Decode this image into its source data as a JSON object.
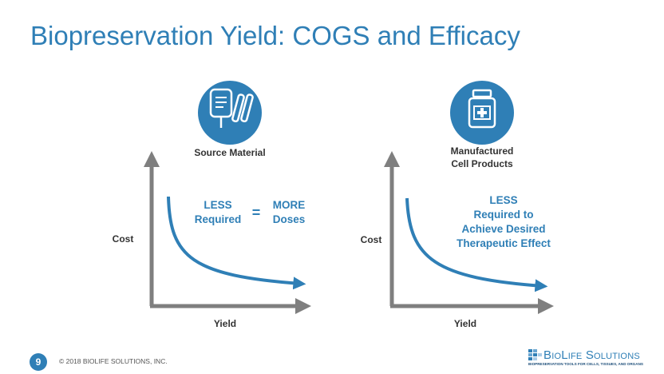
{
  "title": "Biopreservation Yield: COGS and Efficacy",
  "accent_color": "#2f7fb6",
  "panels": [
    {
      "icon": "iv-bag-test-tubes-icon",
      "icon_label": "Source Material",
      "y_axis_label": "Cost",
      "x_axis_label": "Yield",
      "callout_left": "LESS\nRequired",
      "callout_equals": "=",
      "callout_right": "MORE\nDoses"
    },
    {
      "icon": "medicine-bottle-icon",
      "icon_label": "Manufactured\nCell Products",
      "y_axis_label": "Cost",
      "x_axis_label": "Yield",
      "callout": "LESS\nRequired to\nAchieve Desired\nTherapeutic Effect"
    }
  ],
  "footer": {
    "page_number": "9",
    "copyright": "© 2018 BIOLIFE SOLUTIONS, INC.",
    "logo_name": "BioLife Solutions",
    "logo_tagline": "BIOPRESERVATION TOOLS FOR CELLS, TISSUES, AND ORGANS"
  }
}
